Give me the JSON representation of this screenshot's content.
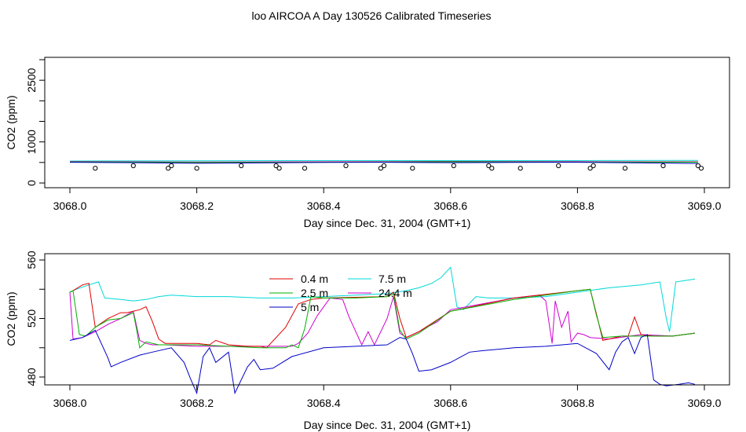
{
  "title": "loo AIRCOA A  Day 130526  Calibrated Timeseries",
  "colors": {
    "red": "#e00000",
    "green": "#00b000",
    "blue": "#0000c8",
    "cyan": "#00d8d8",
    "magenta": "#d000d0"
  },
  "chart_data": [
    {
      "type": "line",
      "xlabel": "Day since Dec. 31, 2004 (GMT+1)",
      "ylabel": "CO2 (ppm)",
      "xlim": [
        3068.0,
        3069.0
      ],
      "ylim": [
        0,
        3000
      ],
      "xticks": [
        {
          "v": 3068.0,
          "label": "3068.0"
        },
        {
          "v": 3068.2,
          "label": "3068.2"
        },
        {
          "v": 3068.4,
          "label": "3068.4"
        },
        {
          "v": 3068.6,
          "label": "3068.6"
        },
        {
          "v": 3068.8,
          "label": "3068.8"
        },
        {
          "v": 3069.0,
          "label": "3069.0"
        }
      ],
      "yticks_minor": [
        0,
        500,
        1000,
        1500,
        2000,
        2500,
        3000
      ],
      "yticks": [
        {
          "v": 0,
          "label": "0"
        },
        {
          "v": 1000,
          "label": "1000"
        },
        {
          "v": 2500,
          "label": "2500"
        }
      ],
      "series": [
        {
          "color": "cyan",
          "x": [
            3068.0,
            3068.2,
            3068.4,
            3068.6,
            3068.8,
            3068.95,
            3068.99
          ],
          "y": [
            535,
            540,
            545,
            545,
            545,
            550,
            550
          ]
        },
        {
          "color": "magenta",
          "x": [
            3068.0,
            3068.2,
            3068.4,
            3068.6,
            3068.8,
            3068.99
          ],
          "y": [
            520,
            510,
            515,
            525,
            520,
            515
          ]
        },
        {
          "color": "red",
          "x": [
            3068.0,
            3068.2,
            3068.4,
            3068.6,
            3068.8,
            3068.99
          ],
          "y": [
            515,
            505,
            510,
            520,
            512,
            510
          ]
        },
        {
          "color": "green",
          "x": [
            3068.0,
            3068.2,
            3068.4,
            3068.6,
            3068.8,
            3068.99
          ],
          "y": [
            510,
            502,
            505,
            515,
            508,
            506
          ]
        },
        {
          "color": "blue",
          "x": [
            3068.0,
            3068.1,
            3068.2,
            3068.3,
            3068.4,
            3068.5,
            3068.6,
            3068.7,
            3068.8,
            3068.9,
            3068.99
          ],
          "y": [
            505,
            495,
            480,
            490,
            500,
            505,
            495,
            500,
            505,
            490,
            475
          ]
        }
      ],
      "points": {
        "x": [
          3068.04,
          3068.1,
          3068.155,
          3068.16,
          3068.2,
          3068.27,
          3068.325,
          3068.33,
          3068.37,
          3068.435,
          3068.49,
          3068.495,
          3068.54,
          3068.605,
          3068.66,
          3068.665,
          3068.71,
          3068.77,
          3068.82,
          3068.825,
          3068.875,
          3068.935,
          3068.99,
          3068.995
        ],
        "y": [
          360,
          420,
          360,
          420,
          360,
          420,
          420,
          360,
          360,
          420,
          360,
          420,
          360,
          420,
          420,
          360,
          360,
          420,
          360,
          420,
          360,
          420,
          420,
          360
        ]
      }
    },
    {
      "type": "line",
      "xlabel": "Day since Dec. 31, 2004 (GMT+1)",
      "ylabel": "CO2 (ppm)",
      "xlim": [
        3068.0,
        3069.0
      ],
      "ylim": [
        468,
        562
      ],
      "xticks": [
        {
          "v": 3068.0,
          "label": "3068.0"
        },
        {
          "v": 3068.2,
          "label": "3068.2"
        },
        {
          "v": 3068.4,
          "label": "3068.4"
        },
        {
          "v": 3068.6,
          "label": "3068.6"
        },
        {
          "v": 3068.8,
          "label": "3068.8"
        },
        {
          "v": 3069.0,
          "label": "3069.0"
        }
      ],
      "yticks_minor": [
        480,
        500,
        520,
        540,
        560
      ],
      "yticks": [
        {
          "v": 480,
          "label": "480"
        },
        {
          "v": 520,
          "label": "520"
        },
        {
          "v": 560,
          "label": "560"
        }
      ],
      "legend": [
        {
          "label": "0.4 m",
          "color": "red"
        },
        {
          "label": "2.5 m",
          "color": "green"
        },
        {
          "label": "5 m",
          "color": "blue"
        },
        {
          "label": "7.5 m",
          "color": "cyan"
        },
        {
          "label": "24.4 m",
          "color": "magenta"
        }
      ],
      "series": [
        {
          "label": "7.5 m",
          "color": "cyan",
          "x": [
            3068.0,
            3068.01,
            3068.03,
            3068.045,
            3068.055,
            3068.08,
            3068.1,
            3068.12,
            3068.14,
            3068.16,
            3068.2,
            3068.25,
            3068.3,
            3068.35,
            3068.4,
            3068.45,
            3068.5,
            3068.53,
            3068.55,
            3068.57,
            3068.585,
            3068.6,
            3068.61,
            3068.62,
            3068.64,
            3068.66,
            3068.7,
            3068.75,
            3068.8,
            3068.85,
            3068.9,
            3068.93,
            3068.94,
            3068.945,
            3068.955,
            3068.97,
            3068.985
          ],
          "y": [
            538,
            540,
            543,
            545,
            534,
            533,
            532,
            533,
            535,
            536,
            535,
            535,
            534,
            534,
            535,
            536,
            537,
            539,
            541,
            544,
            548,
            555,
            528,
            526,
            535,
            534,
            534,
            535,
            538,
            541,
            543,
            545,
            520,
            511,
            545,
            546,
            547
          ]
        },
        {
          "label": "24.4 m",
          "color": "magenta",
          "x": [
            3068.0,
            3068.005,
            3068.02,
            3068.04,
            3068.06,
            3068.08,
            3068.1,
            3068.11,
            3068.12,
            3068.13,
            3068.15,
            3068.2,
            3068.25,
            3068.3,
            3068.35,
            3068.36,
            3068.375,
            3068.39,
            3068.41,
            3068.43,
            3068.44,
            3068.46,
            3068.47,
            3068.48,
            3068.5,
            3068.51,
            3068.52,
            3068.53,
            3068.55,
            3068.58,
            3068.6,
            3068.65,
            3068.7,
            3068.74,
            3068.75,
            3068.76,
            3068.765,
            3068.775,
            3068.785,
            3068.79,
            3068.8,
            3068.81,
            3068.82,
            3068.85,
            3068.9,
            3068.95,
            3068.985
          ],
          "y": [
            538,
            506,
            507,
            511,
            516,
            520,
            525,
            505,
            503,
            502,
            502,
            501,
            501,
            501,
            501,
            503,
            510,
            522,
            534,
            533,
            521,
            502,
            511,
            502,
            520,
            535,
            510,
            507,
            511,
            518,
            526,
            530,
            534,
            536,
            532,
            503,
            532,
            514,
            525,
            504,
            510,
            509,
            507,
            506,
            509,
            508,
            510
          ]
        },
        {
          "label": "0.4 m",
          "color": "red",
          "x": [
            3068.0,
            3068.005,
            3068.02,
            3068.03,
            3068.04,
            3068.06,
            3068.08,
            3068.09,
            3068.11,
            3068.12,
            3068.13,
            3068.14,
            3068.15,
            3068.17,
            3068.2,
            3068.22,
            3068.23,
            3068.25,
            3068.28,
            3068.3,
            3068.31,
            3068.34,
            3068.36,
            3068.38,
            3068.4,
            3068.5,
            3068.51,
            3068.52,
            3068.53,
            3068.55,
            3068.6,
            3068.7,
            3068.8,
            3068.82,
            3068.83,
            3068.84,
            3068.87,
            3068.88,
            3068.89,
            3068.9,
            3068.92,
            3068.95,
            3068.985
          ],
          "y": [
            538,
            539,
            543,
            544,
            514,
            520,
            524,
            524,
            526,
            528,
            518,
            506,
            503,
            503,
            503,
            502,
            505,
            502,
            501,
            501,
            500,
            514,
            530,
            533,
            534,
            535,
            538,
            520,
            507,
            511,
            525,
            534,
            539,
            540,
            523,
            505,
            508,
            508,
            521,
            509,
            508,
            508,
            510
          ]
        },
        {
          "label": "2.5 m",
          "color": "green",
          "x": [
            3068.0,
            3068.005,
            3068.015,
            3068.025,
            3068.04,
            3068.06,
            3068.08,
            3068.1,
            3068.105,
            3068.11,
            3068.12,
            3068.14,
            3068.17,
            3068.2,
            3068.25,
            3068.3,
            3068.34,
            3068.35,
            3068.36,
            3068.37,
            3068.38,
            3068.4,
            3068.45,
            3068.5,
            3068.51,
            3068.52,
            3068.53,
            3068.55,
            3068.6,
            3068.7,
            3068.8,
            3068.82,
            3068.83,
            3068.84,
            3068.87,
            3068.9,
            3068.95,
            3068.985
          ],
          "y": [
            538,
            539,
            509,
            508,
            514,
            519,
            520,
            524,
            513,
            500,
            504,
            502,
            502,
            502,
            501,
            500,
            500,
            502,
            500,
            513,
            535,
            534,
            534,
            535,
            537,
            512,
            506,
            510,
            525,
            533,
            539,
            540,
            522,
            507,
            508,
            508,
            508,
            510
          ]
        },
        {
          "label": "5 m",
          "color": "blue",
          "x": [
            3068.0,
            3068.02,
            3068.04,
            3068.06,
            3068.065,
            3068.08,
            3068.11,
            3068.13,
            3068.16,
            3068.18,
            3068.19,
            3068.2,
            3068.21,
            3068.22,
            3068.23,
            3068.25,
            3068.26,
            3068.28,
            3068.29,
            3068.3,
            3068.32,
            3068.35,
            3068.4,
            3068.45,
            3068.5,
            3068.52,
            3068.53,
            3068.54,
            3068.55,
            3068.57,
            3068.6,
            3068.63,
            3068.65,
            3068.7,
            3068.75,
            3068.8,
            3068.83,
            3068.85,
            3068.86,
            3068.87,
            3068.88,
            3068.89,
            3068.9,
            3068.91,
            3068.92,
            3068.93,
            3068.94,
            3068.96,
            3068.975,
            3068.985
          ],
          "y": [
            505,
            507,
            512,
            493,
            487,
            490,
            495,
            497,
            500,
            490,
            479,
            469,
            494,
            500,
            490,
            497,
            469,
            487,
            492,
            485,
            486,
            494,
            500,
            501,
            502,
            507,
            506,
            496,
            484,
            485,
            490,
            497,
            498,
            500,
            501,
            503,
            496,
            485,
            497,
            504,
            507,
            496,
            507,
            509,
            478,
            475,
            474,
            475,
            476,
            475
          ]
        }
      ]
    }
  ]
}
